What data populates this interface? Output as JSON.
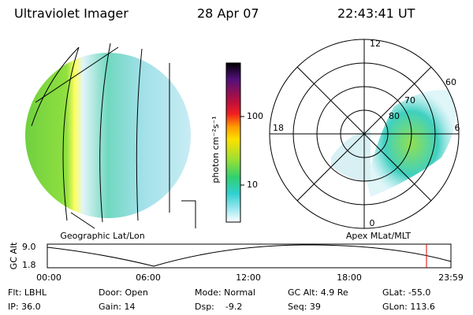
{
  "header": {
    "title": "Ultraviolet Imager",
    "date": "28 Apr 07",
    "time": "22:43:41 UT"
  },
  "colorbar": {
    "label": "photon cm⁻²s⁻¹",
    "ticks": [
      "100",
      "10"
    ]
  },
  "polar": {
    "mlt_labels": [
      "12",
      "18",
      "6",
      "0"
    ],
    "lat_labels": [
      "60",
      "70",
      "80"
    ]
  },
  "panels": {
    "left": "Geographic Lat/Lon",
    "right": "Apex MLat/MLT"
  },
  "altitude": {
    "label": "GC Alt",
    "yticks": [
      "9.0",
      "1.8"
    ],
    "xticks": [
      "00:00",
      "06:00",
      "12:00",
      "18:00",
      "23:59"
    ]
  },
  "footer": [
    [
      "Flt: LBHL",
      "IP: 36.0"
    ],
    [
      "Door: Open",
      "Gain: 14"
    ],
    [
      "Mode: Normal",
      "Dsp:    -9.2"
    ],
    [
      "GC Alt: 4.9 Re",
      "Seq: 39"
    ],
    [
      "GLat: -55.0",
      "GLon: 113.6"
    ]
  ]
}
